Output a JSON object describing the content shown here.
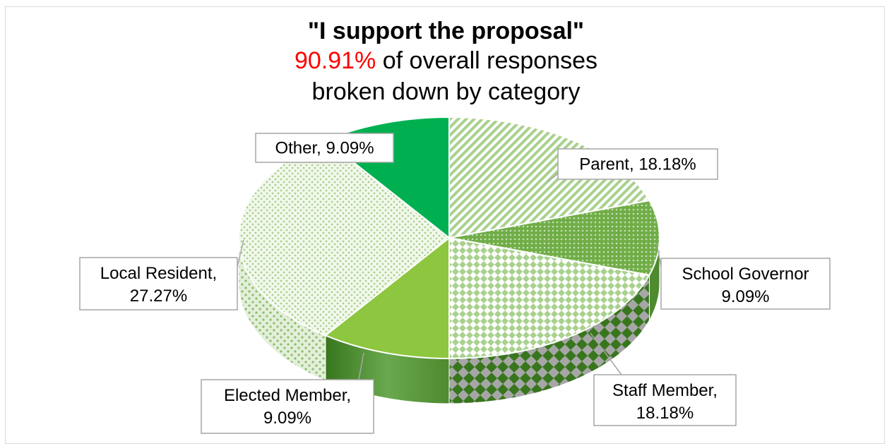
{
  "chart_data": {
    "type": "pie",
    "title": "\"I support the proposal\"",
    "subtitle_highlight": "90.91%",
    "subtitle_rest": " of overall responses",
    "subtitle_line2": "broken down by category",
    "slices": [
      {
        "name": "Parent",
        "value": 18.18,
        "label_line1": "Parent, 18.18%",
        "label_line2": ""
      },
      {
        "name": "School Governor",
        "value": 9.09,
        "label_line1": "School Governor",
        "label_line2": "9.09%"
      },
      {
        "name": "Staff Member",
        "value": 18.18,
        "label_line1": "Staff Member,",
        "label_line2": "18.18%"
      },
      {
        "name": "Elected Member",
        "value": 9.09,
        "label_line1": "Elected Member,",
        "label_line2": "9.09%"
      },
      {
        "name": "Local Resident",
        "value": 27.27,
        "label_line1": "Local Resident,",
        "label_line2": "27.27%"
      },
      {
        "name": "Other",
        "value": 9.09,
        "label_line1": "Other, 9.09%",
        "label_line2": ""
      }
    ],
    "colors": {
      "parent": "#a9d18e",
      "governor": "#70ad47",
      "staff": "#a9d18e",
      "elected": "#8dc63f",
      "resident": "#c5e0b4",
      "other": "#00b050"
    }
  }
}
